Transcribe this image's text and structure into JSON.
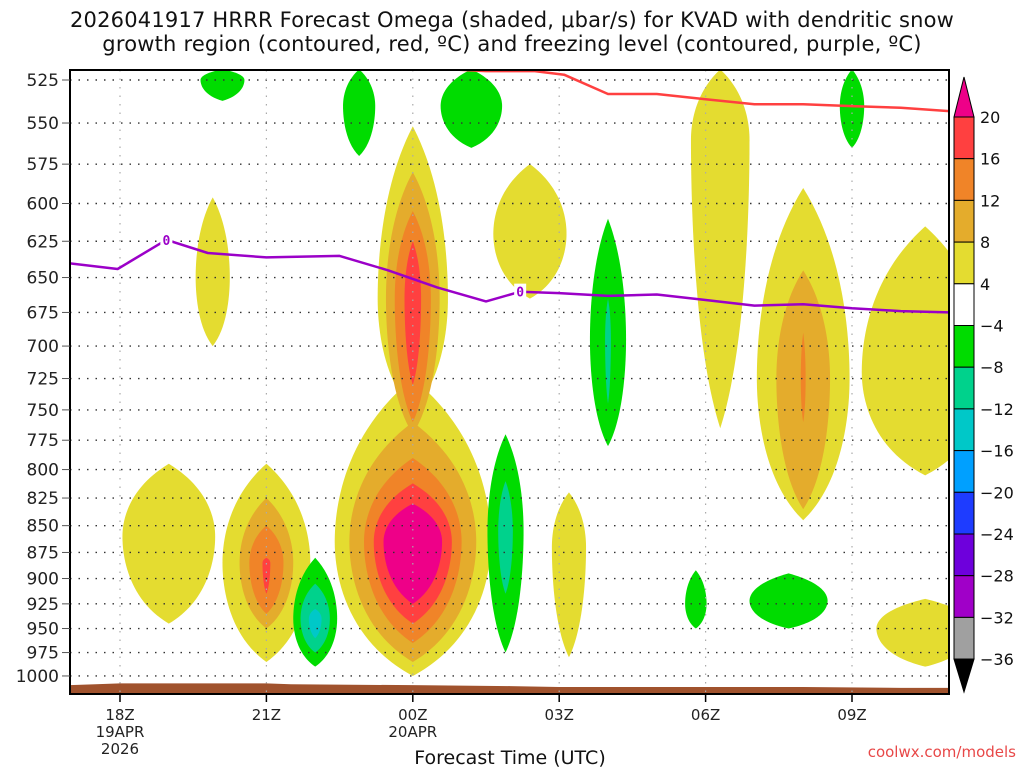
{
  "chart_data": {
    "type": "heatmap",
    "title_lines": [
      "2026041917 HRRR Forecast Omega (shaded, μbar/s) for KVAD with dendritic snow",
      "growth region (contoured, red, ºC) and freezing level (contoured, purple, ºC)"
    ],
    "xlabel": "Forecast Time (UTC)",
    "ylabel": "",
    "x_unit": "hours since 2026-04-19 18Z",
    "xlim": [
      -1.05,
      17
    ],
    "ylim": [
      1019,
      519
    ],
    "y_scale": "log-pressure (hPa)",
    "x_ticks": [
      {
        "x": 0,
        "lines": [
          "18Z",
          "19APR",
          "2026"
        ]
      },
      {
        "x": 3,
        "lines": [
          "21Z"
        ]
      },
      {
        "x": 6,
        "lines": [
          "00Z",
          "20APR"
        ]
      },
      {
        "x": 9,
        "lines": [
          "03Z"
        ]
      },
      {
        "x": 12,
        "lines": [
          "06Z"
        ]
      },
      {
        "x": 15,
        "lines": [
          "09Z"
        ]
      }
    ],
    "y_ticks": [
      525,
      550,
      575,
      600,
      625,
      650,
      675,
      700,
      725,
      750,
      775,
      800,
      825,
      850,
      875,
      900,
      925,
      950,
      975,
      1000
    ],
    "grid": true,
    "colorbar": {
      "placement": "right",
      "labels": [
        "20",
        "16",
        "12",
        "8",
        "4",
        "−4",
        "−8",
        "−12",
        "−16",
        "−20",
        "−24",
        "−28",
        "−32",
        "−36"
      ],
      "bins": [
        {
          "range": "> 20",
          "color": "#ee0088"
        },
        {
          "range": "16 to 20",
          "color": "#ff4040"
        },
        {
          "range": "12 to 16",
          "color": "#f08428"
        },
        {
          "range": "8 to 12",
          "color": "#e4ac2c"
        },
        {
          "range": "4 to 8",
          "color": "#e4dc30"
        },
        {
          "range": "-4 to 4",
          "color": "#ffffff"
        },
        {
          "range": "-8 to -4",
          "color": "#00dc00"
        },
        {
          "range": "-12 to -8",
          "color": "#00d28c"
        },
        {
          "range": "-16 to -12",
          "color": "#00c8c8"
        },
        {
          "range": "-20 to -16",
          "color": "#00a0ff"
        },
        {
          "range": "-24 to -20",
          "color": "#1e3cff"
        },
        {
          "range": "-28 to -24",
          "color": "#6e00dc"
        },
        {
          "range": "-32 to -28",
          "color": "#a000c8"
        },
        {
          "range": "-36 to -32",
          "color": "#a0a0a0"
        },
        {
          "range": "< -36",
          "color": "#000000"
        }
      ]
    },
    "omega_features": [
      {
        "name": "pos-cell-1",
        "x": 1.0,
        "p": 860,
        "levels": [
          {
            "c": 5,
            "hx": 0.95,
            "p_top": 795,
            "p_bot": 945
          }
        ]
      },
      {
        "name": "pos-cell-2",
        "x": 3.0,
        "p": 885,
        "levels": [
          {
            "c": 5,
            "hx": 0.9,
            "p_top": 795,
            "p_bot": 985
          },
          {
            "c": 9,
            "hx": 0.55,
            "p_top": 825,
            "p_bot": 950
          },
          {
            "c": 13,
            "hx": 0.35,
            "p_top": 850,
            "p_bot": 935
          },
          {
            "c": 17,
            "hx": 0.08,
            "p_top": 880,
            "p_bot": 915
          }
        ]
      },
      {
        "name": "pos-cell-3-low",
        "x": 6.0,
        "p": 865,
        "levels": [
          {
            "c": 5,
            "hx": 1.6,
            "p_top": 725,
            "p_bot": 1000
          },
          {
            "c": 9,
            "hx": 1.3,
            "p_top": 760,
            "p_bot": 985
          },
          {
            "c": 13,
            "hx": 1.0,
            "p_top": 790,
            "p_bot": 965
          },
          {
            "c": 17,
            "hx": 0.8,
            "p_top": 812,
            "p_bot": 945
          },
          {
            "c": 21,
            "hx": 0.6,
            "p_top": 830,
            "p_bot": 925
          }
        ]
      },
      {
        "name": "pos-cell-3-high",
        "x": 6.0,
        "p": 665,
        "levels": [
          {
            "c": 5,
            "hx": 0.72,
            "p_top": 552,
            "p_bot": 750
          },
          {
            "c": 9,
            "hx": 0.55,
            "p_top": 580,
            "p_bot": 770
          },
          {
            "c": 13,
            "hx": 0.37,
            "p_top": 605,
            "p_bot": 760
          },
          {
            "c": 17,
            "hx": 0.17,
            "p_top": 625,
            "p_bot": 730
          }
        ]
      },
      {
        "name": "pos-cell-4",
        "x": 1.9,
        "p": 650,
        "levels": [
          {
            "c": 5,
            "hx": 0.35,
            "p_top": 596,
            "p_bot": 700
          }
        ]
      },
      {
        "name": "pos-cell-5",
        "x": 8.4,
        "p": 620,
        "levels": [
          {
            "c": 5,
            "hx": 0.75,
            "p_top": 575,
            "p_bot": 665
          }
        ]
      },
      {
        "name": "pos-cell-6",
        "x": 9.2,
        "p": 870,
        "levels": [
          {
            "c": 5,
            "hx": 0.35,
            "p_top": 820,
            "p_bot": 980
          }
        ]
      },
      {
        "name": "pos-cell-7",
        "x": 12.3,
        "p": 560,
        "levels": [
          {
            "c": 5,
            "hx": 0.6,
            "p_top": 519,
            "p_bot": 765
          }
        ]
      },
      {
        "name": "pos-cell-8",
        "x": 14.0,
        "p": 725,
        "levels": [
          {
            "c": 5,
            "hx": 0.95,
            "p_top": 590,
            "p_bot": 845
          },
          {
            "c": 9,
            "hx": 0.55,
            "p_top": 645,
            "p_bot": 835
          },
          {
            "c": 13,
            "hx": 0.05,
            "p_top": 690,
            "p_bot": 760
          }
        ]
      },
      {
        "name": "pos-cell-9",
        "x": 16.5,
        "p": 720,
        "levels": [
          {
            "c": 5,
            "hx": 1.3,
            "p_top": 615,
            "p_bot": 805
          }
        ]
      },
      {
        "name": "pos-cell-10",
        "x": 16.5,
        "p": 950,
        "levels": [
          {
            "c": 5,
            "hx": 1.0,
            "p_top": 920,
            "p_bot": 990
          }
        ]
      },
      {
        "name": "neg-cell-1",
        "x": 4.0,
        "p": 940,
        "levels": [
          {
            "c": -5,
            "hx": 0.45,
            "p_top": 880,
            "p_bot": 990
          },
          {
            "c": -9,
            "hx": 0.3,
            "p_top": 905,
            "p_bot": 975
          },
          {
            "c": -13,
            "hx": 0.13,
            "p_top": 930,
            "p_bot": 960
          }
        ]
      },
      {
        "name": "neg-cell-2",
        "x": 7.9,
        "p": 855,
        "levels": [
          {
            "c": -5,
            "hx": 0.37,
            "p_top": 770,
            "p_bot": 975
          },
          {
            "c": -9,
            "hx": 0.15,
            "p_top": 810,
            "p_bot": 915
          }
        ]
      },
      {
        "name": "neg-cell-3",
        "x": 10.0,
        "p": 695,
        "levels": [
          {
            "c": -5,
            "hx": 0.37,
            "p_top": 610,
            "p_bot": 780
          },
          {
            "c": -9,
            "hx": 0.06,
            "p_top": 665,
            "p_bot": 745
          }
        ]
      },
      {
        "name": "neg-cell-4",
        "x": 11.8,
        "p": 925,
        "levels": [
          {
            "c": -5,
            "hx": 0.22,
            "p_top": 892,
            "p_bot": 950
          }
        ]
      },
      {
        "name": "neg-cell-5",
        "x": 13.7,
        "p": 922,
        "levels": [
          {
            "c": -5,
            "hx": 0.8,
            "p_top": 895,
            "p_bot": 950
          }
        ]
      },
      {
        "name": "neg-cell-upper-1",
        "x": 2.1,
        "p": 525,
        "levels": [
          {
            "c": -5,
            "hx": 0.45,
            "p_top": 519,
            "p_bot": 537
          }
        ]
      },
      {
        "name": "neg-cell-upper-2",
        "x": 4.9,
        "p": 540,
        "levels": [
          {
            "c": -5,
            "hx": 0.33,
            "p_top": 519,
            "p_bot": 570
          }
        ]
      },
      {
        "name": "neg-cell-upper-3",
        "x": 7.2,
        "p": 540,
        "levels": [
          {
            "c": -5,
            "hx": 0.63,
            "p_top": 519,
            "p_bot": 565
          }
        ]
      },
      {
        "name": "neg-cell-upper-4",
        "x": 15.0,
        "p": 540,
        "levels": [
          {
            "c": -5,
            "hx": 0.25,
            "p_top": 519,
            "p_bot": 565
          }
        ]
      }
    ],
    "series": [
      {
        "name": "freezing level (0 ºC)",
        "color": "#9b00c8",
        "label": "0",
        "x": [
          -1.05,
          -0.05,
          0.95,
          1.8,
          3.0,
          4.5,
          5.5,
          6.5,
          7.5,
          8.2,
          9.0,
          10.0,
          11.0,
          12.0,
          13.0,
          14.0,
          15.0,
          16.0,
          17.0
        ],
        "p": [
          640,
          644,
          624,
          633,
          636,
          635,
          645,
          657,
          667,
          660,
          661,
          663,
          662,
          666,
          670,
          669,
          672,
          674,
          675
        ]
      },
      {
        "name": "dendritic snow growth region (red)",
        "color": "#ff4040",
        "x": [
          6.8,
          7.5,
          8.5,
          9.1,
          10.0,
          11.0,
          12.0,
          13.0,
          14.0,
          15.0,
          16.0,
          17.0
        ],
        "p": [
          519,
          520,
          520,
          522,
          533,
          533,
          536,
          539,
          539,
          540,
          541,
          543
        ]
      }
    ],
    "terrain": {
      "color": "#a0522d",
      "x": [
        -1.05,
        -0.5,
        0.0,
        3.0,
        3.5,
        6.0,
        8.0,
        9.0,
        14.0,
        16.0,
        17.0
      ],
      "p": [
        1010,
        1009,
        1008,
        1008,
        1009,
        1010,
        1011,
        1012,
        1012,
        1013,
        1013
      ]
    },
    "credit": "coolwx.com/models"
  }
}
